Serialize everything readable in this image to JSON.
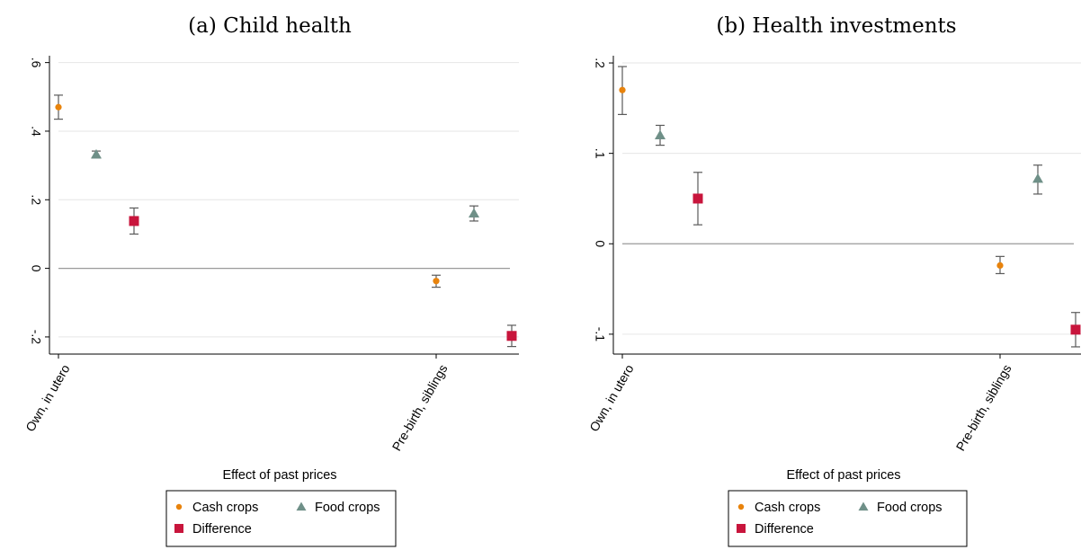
{
  "colors": {
    "cash": "#e8830c",
    "food": "#6f9088",
    "difference": "#c8153c",
    "grid": "#e6e6e6",
    "zero_line": "#9a9a9a",
    "error_bar": "#5a5a5a"
  },
  "chart_data": [
    {
      "type": "scatter",
      "title": "(a) Child health",
      "xlabel": "Effect of past prices",
      "ylabel": "",
      "categories": [
        "Own, in utero",
        "Pre-birth, siblings"
      ],
      "ylim": [
        -0.25,
        0.62
      ],
      "yticks": [
        -0.2,
        0,
        0.2,
        0.4,
        0.6
      ],
      "ytick_labels": [
        "-.2",
        "0",
        ".2",
        ".4",
        ".6"
      ],
      "grid": true,
      "legend": "bottom",
      "series": [
        {
          "name": "Cash crops",
          "marker": "circle",
          "values": [
            0.47,
            -0.037
          ],
          "ci_low": [
            0.435,
            -0.055
          ],
          "ci_high": [
            0.505,
            -0.02
          ]
        },
        {
          "name": "Food crops",
          "marker": "triangle",
          "values": [
            0.332,
            0.16
          ],
          "ci_low": [
            0.322,
            0.138
          ],
          "ci_high": [
            0.342,
            0.182
          ]
        },
        {
          "name": "Difference",
          "marker": "square",
          "values": [
            0.138,
            -0.197
          ],
          "ci_low": [
            0.1,
            -0.228
          ],
          "ci_high": [
            0.176,
            -0.166
          ]
        }
      ]
    },
    {
      "type": "scatter",
      "title": "(b) Health investments",
      "xlabel": "Effect of past prices",
      "ylabel": "",
      "categories": [
        "Own, in utero",
        "Pre-birth, siblings"
      ],
      "ylim": [
        -0.122,
        0.208
      ],
      "yticks": [
        -0.1,
        0,
        0.1,
        0.2
      ],
      "ytick_labels": [
        "-.1",
        "0",
        ".1",
        ".2"
      ],
      "grid": true,
      "legend": "bottom",
      "series": [
        {
          "name": "Cash crops",
          "marker": "circle",
          "values": [
            0.17,
            -0.024
          ],
          "ci_low": [
            0.143,
            -0.033
          ],
          "ci_high": [
            0.196,
            -0.014
          ]
        },
        {
          "name": "Food crops",
          "marker": "triangle",
          "values": [
            0.12,
            0.072
          ],
          "ci_low": [
            0.109,
            0.055
          ],
          "ci_high": [
            0.131,
            0.087
          ]
        },
        {
          "name": "Difference",
          "marker": "square",
          "values": [
            0.05,
            -0.095
          ],
          "ci_low": [
            0.021,
            -0.114
          ],
          "ci_high": [
            0.079,
            -0.076
          ]
        }
      ]
    }
  ]
}
